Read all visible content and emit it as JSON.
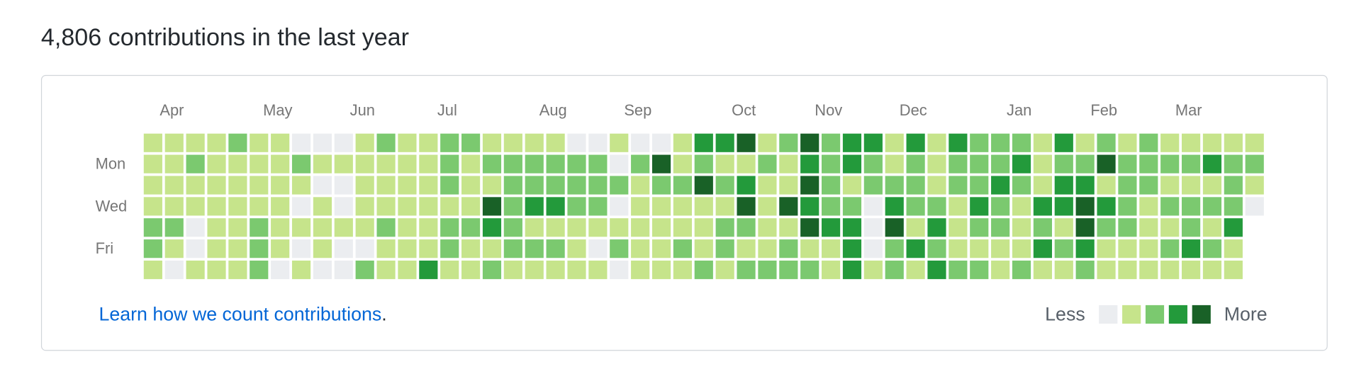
{
  "title": "4,806 contributions in the last year",
  "months": [
    {
      "label": "Apr",
      "week": 1
    },
    {
      "label": "May",
      "week": 6
    },
    {
      "label": "Jun",
      "week": 10
    },
    {
      "label": "Jul",
      "week": 14
    },
    {
      "label": "Aug",
      "week": 19
    },
    {
      "label": "Sep",
      "week": 23
    },
    {
      "label": "Oct",
      "week": 28
    },
    {
      "label": "Nov",
      "week": 32
    },
    {
      "label": "Dec",
      "week": 36
    },
    {
      "label": "Jan",
      "week": 41
    },
    {
      "label": "Feb",
      "week": 45
    },
    {
      "label": "Mar",
      "week": 49
    }
  ],
  "day_labels": [
    {
      "label": "Mon",
      "row": 1
    },
    {
      "label": "Wed",
      "row": 3
    },
    {
      "label": "Fri",
      "row": 5
    }
  ],
  "grid": {
    "rows": [
      [
        1,
        1,
        1,
        1,
        2,
        1,
        1,
        0,
        0,
        0,
        1,
        2,
        1,
        1,
        2,
        2,
        1,
        1,
        1,
        1,
        0,
        0,
        1,
        0,
        0,
        1,
        3,
        3,
        4,
        1,
        2,
        4,
        2,
        3,
        3,
        1,
        3,
        1,
        3,
        2,
        2,
        2,
        1,
        3,
        1,
        2,
        1,
        2,
        1,
        1,
        1,
        1,
        1
      ],
      [
        1,
        1,
        2,
        1,
        1,
        1,
        1,
        2,
        1,
        1,
        1,
        1,
        1,
        1,
        2,
        1,
        2,
        2,
        2,
        2,
        2,
        2,
        0,
        2,
        4,
        1,
        2,
        1,
        1,
        2,
        1,
        3,
        2,
        3,
        2,
        1,
        2,
        1,
        2,
        2,
        2,
        3,
        1,
        2,
        2,
        4,
        2,
        2,
        2,
        2,
        3,
        2,
        2
      ],
      [
        1,
        1,
        1,
        1,
        1,
        1,
        1,
        1,
        0,
        0,
        1,
        1,
        1,
        1,
        2,
        1,
        1,
        2,
        2,
        2,
        2,
        2,
        2,
        1,
        2,
        2,
        4,
        2,
        3,
        1,
        1,
        4,
        2,
        1,
        2,
        2,
        2,
        1,
        2,
        2,
        3,
        2,
        1,
        3,
        3,
        1,
        2,
        2,
        1,
        1,
        1,
        2,
        1
      ],
      [
        1,
        1,
        1,
        1,
        1,
        1,
        1,
        0,
        1,
        0,
        1,
        1,
        1,
        1,
        1,
        1,
        4,
        2,
        3,
        3,
        2,
        2,
        0,
        1,
        1,
        1,
        1,
        1,
        4,
        1,
        4,
        3,
        2,
        2,
        0,
        3,
        2,
        2,
        1,
        3,
        2,
        1,
        3,
        3,
        4,
        3,
        2,
        1,
        2,
        2,
        2,
        2,
        0
      ],
      [
        2,
        2,
        0,
        1,
        1,
        2,
        1,
        1,
        1,
        1,
        1,
        2,
        1,
        1,
        2,
        2,
        3,
        2,
        1,
        1,
        1,
        1,
        1,
        1,
        1,
        1,
        1,
        2,
        2,
        1,
        1,
        4,
        3,
        3,
        0,
        4,
        1,
        3,
        1,
        2,
        2,
        1,
        2,
        1,
        4,
        2,
        2,
        1,
        1,
        2,
        1,
        3
      ],
      [
        2,
        1,
        0,
        1,
        1,
        2,
        1,
        0,
        1,
        0,
        0,
        1,
        1,
        1,
        2,
        1,
        1,
        2,
        2,
        2,
        1,
        0,
        2,
        1,
        1,
        2,
        1,
        2,
        1,
        1,
        2,
        1,
        1,
        3,
        0,
        2,
        3,
        2,
        1,
        1,
        1,
        1,
        3,
        2,
        3,
        1,
        1,
        1,
        2,
        3,
        2,
        1
      ],
      [
        1,
        0,
        1,
        1,
        1,
        2,
        0,
        1,
        0,
        0,
        2,
        1,
        1,
        3,
        1,
        1,
        2,
        1,
        1,
        1,
        1,
        1,
        0,
        1,
        1,
        1,
        2,
        1,
        2,
        2,
        2,
        2,
        1,
        3,
        1,
        2,
        1,
        3,
        2,
        2,
        1,
        2,
        1,
        1,
        2,
        1,
        1,
        1,
        1,
        1,
        1,
        1
      ]
    ]
  },
  "colors": [
    "#ebedf0",
    "#c6e48b",
    "#7bc96f",
    "#239a3b",
    "#196127"
  ],
  "footer": {
    "link": "Learn how we count contributions",
    "period": "."
  },
  "legend": {
    "less": "Less",
    "more": "More"
  }
}
